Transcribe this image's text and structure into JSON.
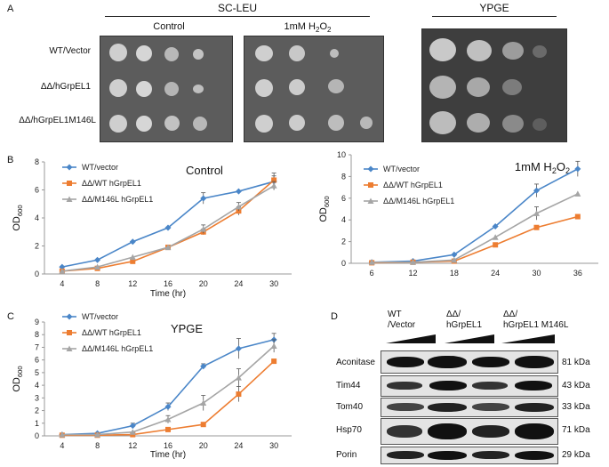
{
  "panel_labels": {
    "a": "A",
    "b": "B",
    "c": "C",
    "d": "D"
  },
  "panel_a": {
    "medium_sc_leu": "SC-LEU",
    "medium_ypge": "YPGE",
    "cond_control": "Control",
    "cond_h2o2_prefix": "1mM H",
    "cond_h2o2_sub2": "2",
    "cond_h2o2_o": "O",
    "cond_h2o2_sub2b": "2",
    "strains": [
      "WT/Vector",
      "ΔΔ/hGrpEL1",
      "ΔΔ/hGrpEL1M146L"
    ]
  },
  "chart_data": [
    {
      "type": "line",
      "id": "control",
      "title": "Control",
      "title_html_sub": "",
      "xlabel": "Time (hr)",
      "ylabel": "OD600",
      "categories": [
        "4",
        "8",
        "12",
        "16",
        "20",
        "24",
        "30"
      ],
      "ylim": [
        0,
        8
      ],
      "yticks": [
        0,
        2,
        4,
        6,
        8
      ],
      "legend": "top-left",
      "series": [
        {
          "name": "WT/vector",
          "color": "#4a86c8",
          "marker": "diamond",
          "values": [
            0.5,
            1.0,
            2.3,
            3.3,
            5.4,
            5.9,
            6.6
          ],
          "errors": [
            0,
            0,
            0,
            0,
            0.4,
            0,
            0.6
          ]
        },
        {
          "name": "ΔΔ/WT hGrpEL1",
          "color": "#ed7d31",
          "marker": "square",
          "values": [
            0.2,
            0.4,
            0.9,
            1.9,
            3.0,
            4.5,
            6.7
          ],
          "errors": [
            0,
            0,
            0,
            0,
            0.2,
            0.3,
            0.3
          ]
        },
        {
          "name": "ΔΔ/M146L hGrpEL1",
          "color": "#a5a5a5",
          "marker": "triangle",
          "values": [
            0.2,
            0.5,
            1.2,
            1.9,
            3.2,
            4.8,
            6.3
          ],
          "errors": [
            0,
            0,
            0,
            0,
            0.3,
            0.3,
            0.3
          ]
        }
      ]
    },
    {
      "type": "line",
      "id": "h2o2",
      "title": "1mM H2O2",
      "xlabel": "",
      "ylabel": "OD600",
      "categories": [
        "6",
        "12",
        "18",
        "24",
        "30",
        "36"
      ],
      "ylim": [
        0,
        10
      ],
      "yticks": [
        0,
        2,
        4,
        6,
        8,
        10
      ],
      "legend": "top-left",
      "series": [
        {
          "name": "WT/vector",
          "color": "#4a86c8",
          "marker": "diamond",
          "values": [
            0.1,
            0.2,
            0.8,
            3.4,
            6.7,
            8.7
          ],
          "errors": [
            0,
            0,
            0,
            0,
            0.6,
            0.7
          ]
        },
        {
          "name": "ΔΔ/WT hGrpEL1",
          "color": "#ed7d31",
          "marker": "square",
          "values": [
            0.05,
            0.1,
            0.2,
            1.7,
            3.3,
            4.3
          ],
          "errors": [
            0,
            0,
            0,
            0,
            0,
            0
          ]
        },
        {
          "name": "ΔΔ/M146L hGrpEL1",
          "color": "#a5a5a5",
          "marker": "triangle",
          "values": [
            0.1,
            0.1,
            0.3,
            2.4,
            4.6,
            6.4
          ],
          "errors": [
            0,
            0,
            0,
            0,
            0.6,
            0
          ]
        }
      ]
    },
    {
      "type": "line",
      "id": "ypge",
      "title": "YPGE",
      "xlabel": "Time (hr)",
      "ylabel": "OD600",
      "categories": [
        "4",
        "8",
        "12",
        "16",
        "20",
        "24",
        "30"
      ],
      "ylim": [
        0,
        9
      ],
      "yticks": [
        0,
        1,
        2,
        3,
        4,
        5,
        6,
        7,
        8,
        9
      ],
      "legend": "top-left",
      "series": [
        {
          "name": "WT/vector",
          "color": "#4a86c8",
          "marker": "diamond",
          "values": [
            0.1,
            0.2,
            0.8,
            2.3,
            5.5,
            6.9,
            7.6
          ],
          "errors": [
            0,
            0,
            0.2,
            0.3,
            0.2,
            0.8,
            0.5
          ]
        },
        {
          "name": "ΔΔ/WT hGrpEL1",
          "color": "#ed7d31",
          "marker": "square",
          "values": [
            0.05,
            0.05,
            0.1,
            0.5,
            0.9,
            3.3,
            5.9
          ],
          "errors": [
            0,
            0,
            0,
            0,
            0,
            0.6,
            0
          ]
        },
        {
          "name": "ΔΔ/M146L hGrpEL1",
          "color": "#a5a5a5",
          "marker": "triangle",
          "values": [
            0.1,
            0.1,
            0.3,
            1.3,
            2.6,
            4.6,
            7.1
          ],
          "errors": [
            0,
            0,
            0,
            0.3,
            0.6,
            0.7,
            0.5
          ]
        }
      ]
    }
  ],
  "panel_d": {
    "groups": [
      {
        "line1": "WT",
        "line2": "/Vector"
      },
      {
        "line1": "ΔΔ/",
        "line2": "hGrpEL1"
      },
      {
        "line1": "ΔΔ/",
        "line2": "hGrpEL1 M146L"
      }
    ],
    "blots": [
      {
        "name": "Aconitase",
        "kda": "81 kDa"
      },
      {
        "name": "Tim44",
        "kda": "43 kDa"
      },
      {
        "name": "Tom40",
        "kda": "33 kDa"
      },
      {
        "name": "Hsp70",
        "kda": "71 kDa"
      },
      {
        "name": "Porin",
        "kda": "29 kDa"
      }
    ]
  }
}
